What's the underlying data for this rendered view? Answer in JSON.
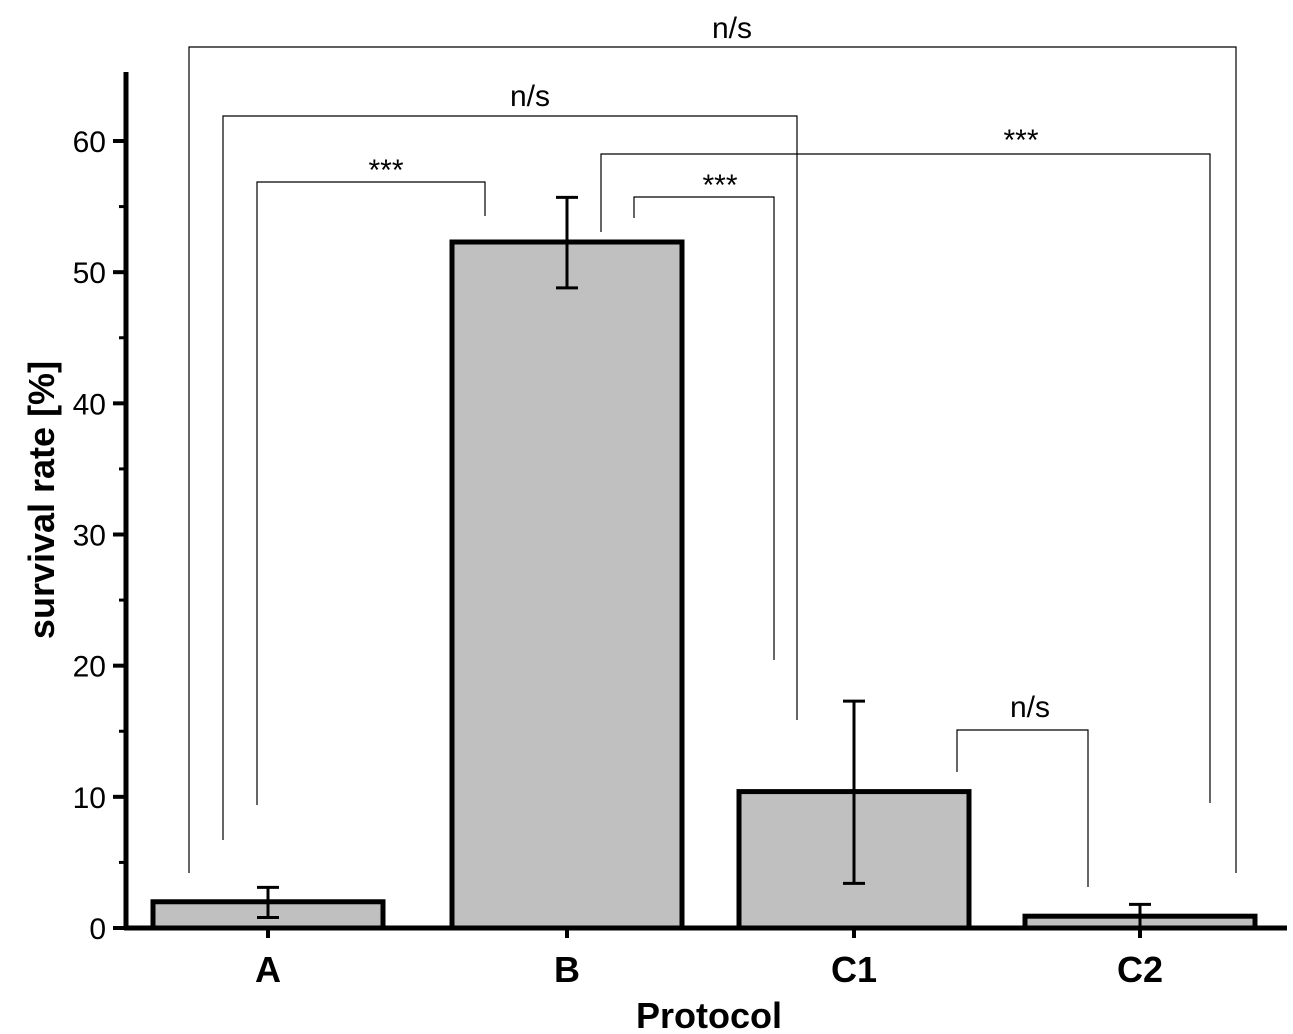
{
  "chart_data": {
    "type": "bar",
    "title": "",
    "xlabel": "Protocol",
    "ylabel": "survival rate [%]",
    "categories": [
      "A",
      "B",
      "C1",
      "C2"
    ],
    "values": [
      2.0,
      52.3,
      10.4,
      0.9
    ],
    "errors": [
      [
        0.8,
        3.1
      ],
      [
        48.8,
        55.7
      ],
      [
        3.4,
        17.3
      ],
      [
        0.0,
        1.8
      ]
    ],
    "ylim": [
      0,
      65
    ],
    "yticks": [
      0,
      10,
      20,
      30,
      40,
      50,
      60
    ],
    "grid": false,
    "bar_color": "#c0c0c0",
    "significance": [
      {
        "from": "A",
        "to": "B",
        "label": "***"
      },
      {
        "from": "A",
        "to": "C1",
        "label": "n/s"
      },
      {
        "from": "A",
        "to": "C2",
        "label": "n/s"
      },
      {
        "from": "B",
        "to": "C1",
        "label": "***"
      },
      {
        "from": "B",
        "to": "C2",
        "label": "***"
      },
      {
        "from": "C1",
        "to": "C2",
        "label": "n/s"
      }
    ]
  }
}
